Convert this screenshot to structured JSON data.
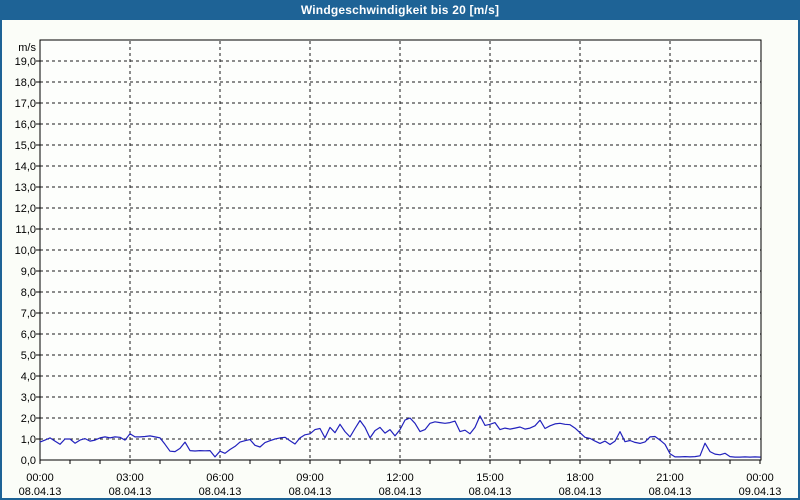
{
  "window": {
    "title": "Windgeschwindigkeit bis 20 [m/s]"
  },
  "colors": {
    "titlebar_bg": "#1e6396",
    "titlebar_text": "#ffffff",
    "frame": "#1e6396",
    "page_bg": "#fbfdf8",
    "plot_bg": "#fdfefc",
    "axis": "#000000",
    "grid": "#1b1b1b",
    "series": "#2222bd",
    "label": "#000000"
  },
  "chart_data": {
    "type": "line",
    "title": "Windgeschwindigkeit bis 20 [m/s]",
    "unit_label": "m/s",
    "ylim": [
      0,
      20
    ],
    "y_tick_step": 1.0,
    "y_tick_labels": [
      "0,0",
      "1,0",
      "2,0",
      "3,0",
      "4,0",
      "5,0",
      "6,0",
      "7,0",
      "8,0",
      "9,0",
      "10,0",
      "11,0",
      "12,0",
      "13,0",
      "14,0",
      "15,0",
      "16,0",
      "17,0",
      "18,0",
      "19,0"
    ],
    "grid": "dashed",
    "legend": "none",
    "x_range_hours": [
      0,
      24
    ],
    "x_minor_tick_hours": 1,
    "x_ticks": [
      {
        "hour": 0,
        "time": "00:00",
        "date": "08.04.13"
      },
      {
        "hour": 3,
        "time": "03:00",
        "date": "08.04.13"
      },
      {
        "hour": 6,
        "time": "06:00",
        "date": "08.04.13"
      },
      {
        "hour": 9,
        "time": "09:00",
        "date": "08.04.13"
      },
      {
        "hour": 12,
        "time": "12:00",
        "date": "08.04.13"
      },
      {
        "hour": 15,
        "time": "15:00",
        "date": "08.04.13"
      },
      {
        "hour": 18,
        "time": "18:00",
        "date": "08.04.13"
      },
      {
        "hour": 21,
        "time": "21:00",
        "date": "08.04.13"
      },
      {
        "hour": 24,
        "time": "00:00",
        "date": "09.04.13"
      }
    ],
    "series_start": "00:00",
    "interval_minutes": 10,
    "values": [
      0.85,
      0.95,
      1.05,
      0.9,
      0.75,
      1.0,
      1.0,
      0.8,
      0.95,
      1.02,
      0.9,
      0.95,
      1.05,
      1.1,
      1.05,
      1.1,
      1.08,
      0.95,
      1.25,
      1.1,
      1.1,
      1.12,
      1.15,
      1.1,
      1.05,
      0.75,
      0.42,
      0.4,
      0.55,
      0.85,
      0.45,
      0.43,
      0.45,
      0.44,
      0.45,
      0.15,
      0.42,
      0.32,
      0.5,
      0.65,
      0.85,
      0.92,
      0.97,
      0.7,
      0.62,
      0.83,
      0.92,
      1.0,
      1.05,
      1.08,
      0.92,
      0.76,
      1.05,
      1.2,
      1.25,
      1.45,
      1.5,
      1.05,
      1.55,
      1.3,
      1.7,
      1.35,
      1.1,
      1.5,
      1.88,
      1.55,
      1.05,
      1.4,
      1.55,
      1.28,
      1.45,
      1.15,
      1.45,
      1.9,
      2.0,
      1.75,
      1.35,
      1.45,
      1.75,
      1.82,
      1.78,
      1.75,
      1.78,
      1.85,
      1.35,
      1.42,
      1.25,
      1.55,
      2.1,
      1.65,
      1.7,
      1.78,
      1.45,
      1.52,
      1.47,
      1.52,
      1.57,
      1.47,
      1.52,
      1.63,
      1.9,
      1.5,
      1.63,
      1.72,
      1.75,
      1.7,
      1.68,
      1.52,
      1.3,
      1.08,
      1.03,
      0.9,
      0.79,
      0.9,
      0.74,
      0.9,
      1.35,
      0.87,
      0.93,
      0.84,
      0.79,
      0.86,
      1.1,
      1.12,
      0.95,
      0.75,
      0.3,
      0.15,
      0.15,
      0.16,
      0.15,
      0.16,
      0.2,
      0.8,
      0.4,
      0.28,
      0.25,
      0.32,
      0.16,
      0.14,
      0.14,
      0.15,
      0.14,
      0.15,
      0.14
    ]
  }
}
